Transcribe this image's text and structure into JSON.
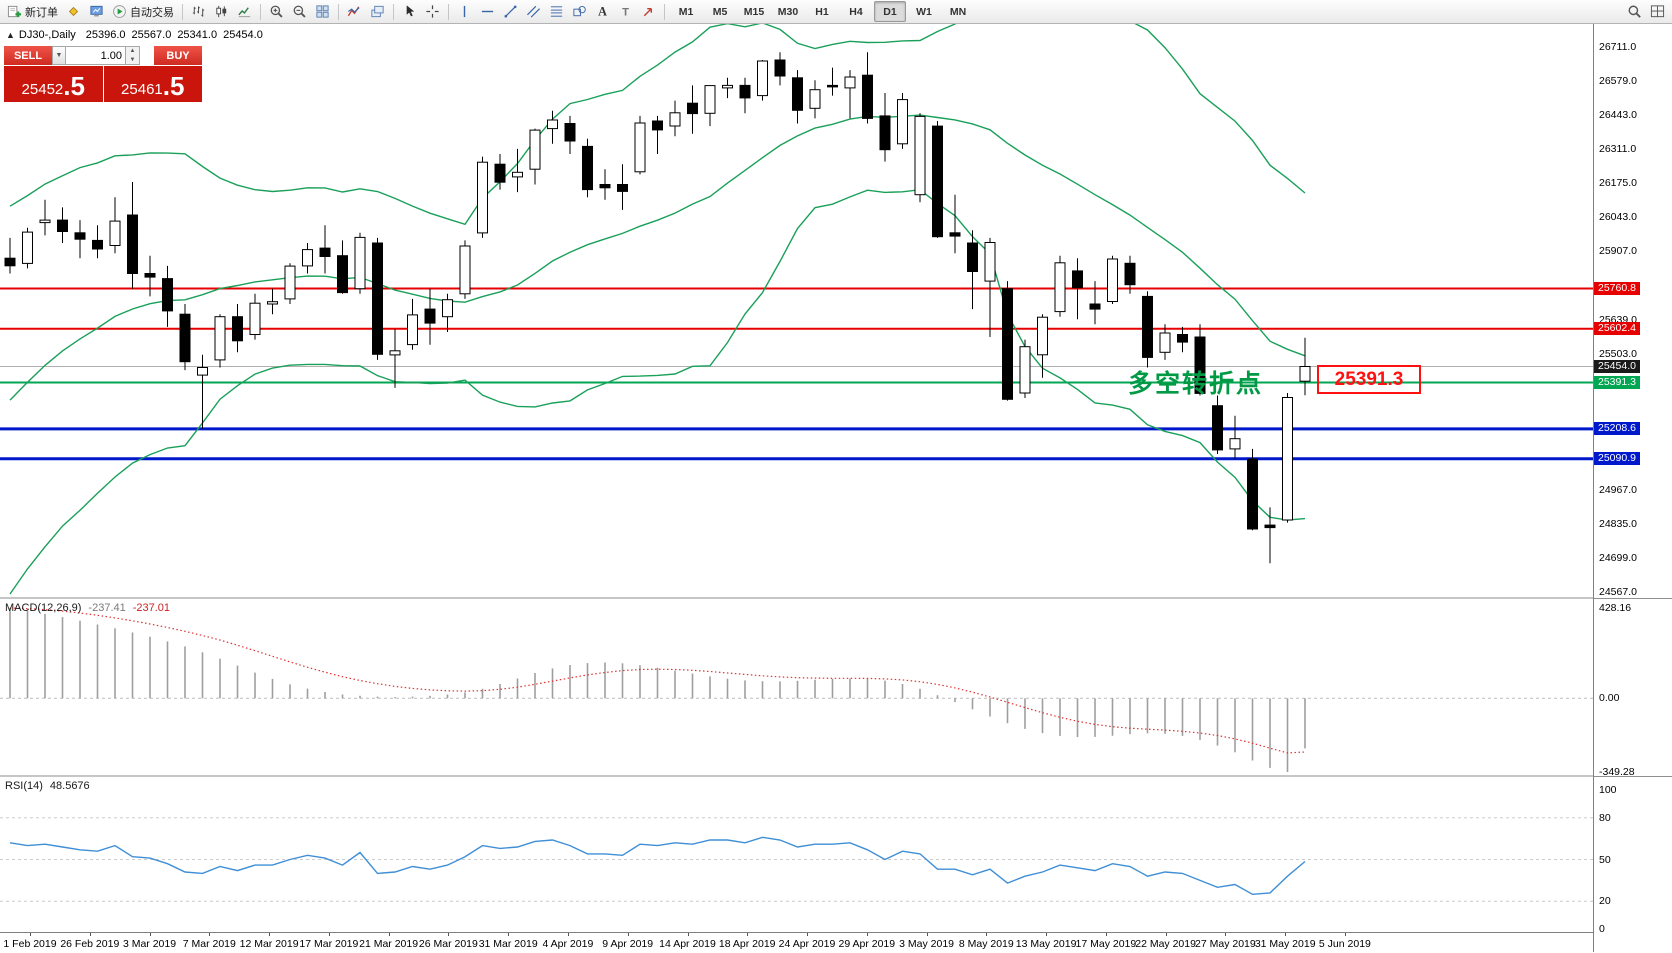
{
  "header": {
    "collapse_icon": "▲",
    "symbol_period": "DJ30-,Daily",
    "open": "25396.0",
    "high": "25567.0",
    "low": "25341.0",
    "close": "25454.0"
  },
  "toolbar": {
    "groups": [
      {
        "items": [
          {
            "name": "new-order",
            "icon": "new-order",
            "label": "新订单"
          },
          {
            "name": "symbols",
            "icon": "diamond",
            "label": ""
          },
          {
            "name": "chart-profile",
            "icon": "monitor",
            "label": ""
          },
          {
            "name": "auto-trading",
            "icon": "play",
            "label": "自动交易"
          }
        ]
      },
      {
        "items": [
          {
            "name": "bar-chart",
            "icon": "bars",
            "label": ""
          },
          {
            "name": "candlestick-chart",
            "icon": "candles",
            "label": ""
          },
          {
            "name": "line-chart",
            "icon": "polyline",
            "label": ""
          }
        ]
      },
      {
        "items": [
          {
            "name": "zoom-in",
            "icon": "zoom-in",
            "label": ""
          },
          {
            "name": "zoom-out",
            "icon": "zoom-out",
            "label": ""
          },
          {
            "name": "tile-windows",
            "icon": "tiles",
            "label": ""
          }
        ]
      },
      {
        "items": [
          {
            "name": "indicators",
            "icon": "indicator",
            "label": ""
          },
          {
            "name": "objects-list",
            "icon": "layers",
            "label": ""
          }
        ]
      },
      {
        "items": [
          {
            "name": "cursor",
            "icon": "cursor",
            "label": ""
          },
          {
            "name": "crosshair",
            "icon": "crosshair",
            "label": ""
          }
        ]
      },
      {
        "items": [
          {
            "name": "vertical-line",
            "icon": "vline",
            "label": ""
          },
          {
            "name": "horizontal-line",
            "icon": "hline",
            "label": ""
          },
          {
            "name": "trendline",
            "icon": "trend",
            "label": ""
          },
          {
            "name": "equidistant-channel",
            "icon": "channel",
            "label": ""
          },
          {
            "name": "fibonacci",
            "icon": "fibo",
            "label": ""
          },
          {
            "name": "shapes",
            "icon": "shapes",
            "label": ""
          },
          {
            "name": "text",
            "icon": "textA",
            "label": "A"
          },
          {
            "name": "text-label",
            "icon": "textT",
            "label": ""
          },
          {
            "name": "arrow-objects",
            "icon": "arrow",
            "label": ""
          }
        ]
      }
    ],
    "timeframes": [
      "M1",
      "M5",
      "M15",
      "M30",
      "H1",
      "H4",
      "D1",
      "W1",
      "MN"
    ],
    "active_timeframe": "D1",
    "right_items": [
      {
        "name": "search",
        "icon": "search"
      },
      {
        "name": "window-layout",
        "icon": "grid"
      }
    ]
  },
  "trade_panel": {
    "sell_label": "SELL",
    "buy_label": "BUY",
    "volume": "1.00",
    "sell_price_main": "25452",
    "sell_price_frac": ".5",
    "buy_price_main": "25461",
    "buy_price_frac": ".5"
  },
  "annotation": {
    "text": "多空转折点",
    "boxed_value": "25391.3",
    "text_color": "#009944",
    "box_color": "#ff1111"
  },
  "indicators": {
    "macd": {
      "name": "MACD(12,26,9)",
      "value_main": "-237.41",
      "value_signal": "-237.01",
      "axis_labels": [
        "428.16",
        "0.00",
        "-349.28"
      ]
    },
    "rsi": {
      "name": "RSI(14)",
      "value": "48.5676",
      "axis_labels": [
        "100",
        "80",
        "50",
        "20",
        "0"
      ]
    }
  },
  "chart_data": {
    "type": "candlestick",
    "symbol": "DJ30-",
    "period": "Daily",
    "ylim": [
      24567,
      26711
    ],
    "price_ticks": [
      {
        "label": "26711.0",
        "value": 26711
      },
      {
        "label": "26579.0",
        "value": 26579
      },
      {
        "label": "26443.0",
        "value": 26443
      },
      {
        "label": "26311.0",
        "value": 26311
      },
      {
        "label": "26175.0",
        "value": 26175
      },
      {
        "label": "26043.0",
        "value": 26043
      },
      {
        "label": "25907.0",
        "value": 25907
      },
      {
        "label": "25639.0",
        "value": 25639
      },
      {
        "label": "25503.0",
        "value": 25503
      },
      {
        "label": "24967.0",
        "value": 24967
      },
      {
        "label": "24835.0",
        "value": 24835
      },
      {
        "label": "24699.0",
        "value": 24699
      },
      {
        "label": "24567.0",
        "value": 24567
      }
    ],
    "levels": [
      {
        "label": "25760.8",
        "value": 25760.8,
        "color": "#e60000",
        "badge_bg": "#e60000",
        "thickness": 2
      },
      {
        "label": "25602.4",
        "value": 25602.4,
        "color": "#e60000",
        "badge_bg": "#e60000",
        "thickness": 2
      },
      {
        "label": "25454.0",
        "value": 25454.0,
        "color": "#b0b0b0",
        "badge_bg": "#1a1a1a",
        "thickness": 1
      },
      {
        "label": "25391.3",
        "value": 25391.3,
        "color": "#00a651",
        "badge_bg": "#00a651",
        "thickness": 2
      },
      {
        "label": "25208.6",
        "value": 25208.6,
        "color": "#0018cc",
        "badge_bg": "#0018cc",
        "thickness": 3
      },
      {
        "label": "25090.9",
        "value": 25090.9,
        "color": "#0018cc",
        "badge_bg": "#0018cc",
        "thickness": 3
      }
    ],
    "dates": [
      "1 Feb 2019",
      "26 Feb 2019",
      "3 Mar 2019",
      "7 Mar 2019",
      "12 Mar 2019",
      "17 Mar 2019",
      "21 Mar 2019",
      "26 Mar 2019",
      "31 Mar 2019",
      "4 Apr 2019",
      "9 Apr 2019",
      "14 Apr 2019",
      "18 Apr 2019",
      "24 Apr 2019",
      "29 Apr 2019",
      "3 May 2019",
      "8 May 2019",
      "13 May 2019",
      "17 May 2019",
      "22 May 2019",
      "27 May 2019",
      "31 May 2019",
      "5 Jun 2019"
    ],
    "candles": [
      [
        25880,
        25960,
        25820,
        25850
      ],
      [
        25860,
        26000,
        25840,
        25983
      ],
      [
        26020,
        26110,
        25970,
        26030
      ],
      [
        26030,
        26080,
        25940,
        25985
      ],
      [
        25980,
        26030,
        25880,
        25955
      ],
      [
        25950,
        26010,
        25880,
        25916
      ],
      [
        25930,
        26120,
        25900,
        26026
      ],
      [
        26050,
        26180,
        25760,
        25820
      ],
      [
        25820,
        25890,
        25730,
        25806
      ],
      [
        25800,
        25850,
        25610,
        25673
      ],
      [
        25660,
        25700,
        25440,
        25473
      ],
      [
        25420,
        25500,
        25210,
        25450
      ],
      [
        25480,
        25660,
        25450,
        25650
      ],
      [
        25650,
        25700,
        25510,
        25555
      ],
      [
        25580,
        25740,
        25560,
        25703
      ],
      [
        25700,
        25760,
        25660,
        25709
      ],
      [
        25720,
        25860,
        25700,
        25849
      ],
      [
        25850,
        25940,
        25820,
        25914
      ],
      [
        25920,
        26010,
        25820,
        25887
      ],
      [
        25890,
        25950,
        25740,
        25745
      ],
      [
        25760,
        25980,
        25740,
        25962
      ],
      [
        25940,
        25960,
        25480,
        25502
      ],
      [
        25500,
        25600,
        25370,
        25516
      ],
      [
        25540,
        25720,
        25520,
        25657
      ],
      [
        25680,
        25760,
        25540,
        25625
      ],
      [
        25650,
        25740,
        25590,
        25717
      ],
      [
        25740,
        25950,
        25720,
        25928
      ],
      [
        25980,
        26280,
        25960,
        26258
      ],
      [
        26250,
        26290,
        26150,
        26179
      ],
      [
        26200,
        26310,
        26140,
        26218
      ],
      [
        26230,
        26390,
        26170,
        26384
      ],
      [
        26390,
        26460,
        26330,
        26424
      ],
      [
        26410,
        26440,
        26290,
        26341
      ],
      [
        26320,
        26350,
        26120,
        26150
      ],
      [
        26170,
        26230,
        26110,
        26157
      ],
      [
        26170,
        26250,
        26070,
        26143
      ],
      [
        26220,
        26440,
        26210,
        26412
      ],
      [
        26420,
        26440,
        26290,
        26385
      ],
      [
        26400,
        26500,
        26360,
        26452
      ],
      [
        26490,
        26560,
        26370,
        26449
      ],
      [
        26450,
        26560,
        26400,
        26559
      ],
      [
        26550,
        26590,
        26510,
        26560
      ],
      [
        26560,
        26590,
        26450,
        26511
      ],
      [
        26520,
        26660,
        26500,
        26656
      ],
      [
        26660,
        26690,
        26560,
        26597
      ],
      [
        26590,
        26620,
        26410,
        26462
      ],
      [
        26470,
        26580,
        26430,
        26543
      ],
      [
        26560,
        26630,
        26520,
        26554
      ],
      [
        26550,
        26620,
        26430,
        26593
      ],
      [
        26600,
        26690,
        26410,
        26430
      ],
      [
        26440,
        26530,
        26260,
        26307
      ],
      [
        26330,
        26530,
        26310,
        26504
      ],
      [
        26130,
        26450,
        26100,
        26438
      ],
      [
        26400,
        26420,
        25960,
        25965
      ],
      [
        25980,
        26130,
        25900,
        25967
      ],
      [
        25940,
        25990,
        25680,
        25828
      ],
      [
        25790,
        25960,
        25570,
        25942
      ],
      [
        25760,
        25790,
        25320,
        25325
      ],
      [
        25350,
        25560,
        25330,
        25532
      ],
      [
        25500,
        25660,
        25410,
        25648
      ],
      [
        25670,
        25890,
        25650,
        25862
      ],
      [
        25830,
        25880,
        25640,
        25764
      ],
      [
        25700,
        25790,
        25620,
        25680
      ],
      [
        25710,
        25890,
        25700,
        25877
      ],
      [
        25860,
        25890,
        25740,
        25776
      ],
      [
        25730,
        25750,
        25450,
        25490
      ],
      [
        25510,
        25620,
        25480,
        25586
      ],
      [
        25580,
        25610,
        25510,
        25550
      ],
      [
        25570,
        25620,
        25340,
        25348
      ],
      [
        25300,
        25340,
        25110,
        25126
      ],
      [
        25130,
        25260,
        25090,
        25170
      ],
      [
        25090,
        25130,
        24810,
        24815
      ],
      [
        24830,
        24900,
        24680,
        24820
      ],
      [
        24850,
        25350,
        24840,
        25332
      ],
      [
        25396,
        25567,
        25341,
        25454
      ]
    ],
    "bollinger": {
      "period": 20,
      "deviation": 2,
      "color": "#1aa05a",
      "warmup_closes": [
        24737,
        24580,
        24706,
        24840,
        25014,
        25063,
        25106,
        25239,
        25390,
        25425,
        25411,
        25053,
        25169,
        25306,
        25425,
        25543,
        25683,
        25791,
        25891,
        25954
      ]
    },
    "macd": {
      "range": [
        428.16,
        -349.28
      ],
      "signal_period": 9,
      "histogram_color": "#9e9e9e",
      "signal_color": "#e03030",
      "histogram": [
        428.16,
        415,
        400,
        385,
        368,
        350,
        332,
        312,
        292,
        270,
        246,
        218,
        188,
        155,
        122,
        92,
        66,
        46,
        30,
        18,
        12,
        8,
        6,
        8,
        12,
        18,
        28,
        45,
        68,
        94,
        120,
        142,
        158,
        167,
        170,
        166,
        157,
        145,
        131,
        117,
        104,
        93,
        85,
        81,
        80,
        83,
        88,
        92,
        94,
        92,
        84,
        68,
        45,
        15,
        -18,
        -52,
        -86,
        -118,
        -145,
        -165,
        -178,
        -184,
        -183,
        -177,
        -170,
        -166,
        -168,
        -178,
        -197,
        -224,
        -256,
        -295,
        -330,
        -349.28,
        -237.41
      ]
    },
    "rsi": {
      "range": [
        0,
        100
      ],
      "levels": [
        80,
        50,
        20
      ],
      "color": "#3f8fd6",
      "values": [
        62,
        60,
        61,
        59,
        57,
        56,
        60,
        52,
        51,
        47,
        41,
        40,
        45,
        42,
        46,
        46,
        50,
        53,
        51,
        46,
        55,
        40,
        41,
        45,
        43,
        46,
        52,
        60,
        58,
        59,
        63,
        64,
        60,
        54,
        54,
        53,
        61,
        60,
        62,
        61,
        64,
        64,
        62,
        66,
        64,
        59,
        61,
        61,
        62,
        57,
        50,
        56,
        54,
        43,
        43,
        39,
        43,
        33,
        38,
        41,
        46,
        44,
        42,
        47,
        45,
        38,
        41,
        40,
        35,
        30,
        32,
        25,
        26,
        38,
        48.57
      ]
    }
  }
}
